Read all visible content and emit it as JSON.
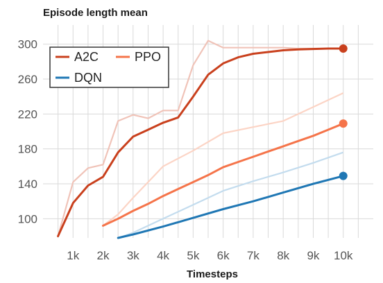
{
  "chart_data": {
    "type": "line",
    "title": "Episode length mean",
    "xlabel": "Timesteps",
    "ylabel": "",
    "xlim": [
      0,
      11000
    ],
    "ylim": [
      78,
      322
    ],
    "x_ticks": [
      1000,
      2000,
      3000,
      4000,
      5000,
      6000,
      7000,
      8000,
      9000,
      10000
    ],
    "x_tick_labels": [
      "1k",
      "2k",
      "3k",
      "4k",
      "5k",
      "6k",
      "7k",
      "8k",
      "9k",
      "10k"
    ],
    "y_ticks": [
      100,
      140,
      180,
      220,
      260,
      300
    ],
    "y_tick_labels": [
      "100",
      "140",
      "180",
      "220",
      "260",
      "300"
    ],
    "grid": true,
    "legend_position": "top-left",
    "series": [
      {
        "name": "A2C",
        "color": "#c9401d",
        "raw_color": "#f0c3b8",
        "x": [
          500,
          1000,
          1500,
          2000,
          2500,
          3000,
          3500,
          4000,
          4500,
          5000,
          5500,
          6000,
          6500,
          7000,
          7500,
          8000,
          8500,
          9000,
          9500,
          10000
        ],
        "values": [
          80,
          118,
          138,
          148,
          176,
          194,
          202,
          210,
          216,
          240,
          265,
          278,
          285,
          289,
          291,
          293,
          294,
          294.5,
          295,
          295
        ],
        "raw_x": [
          500,
          1000,
          1500,
          2000,
          2500,
          3000,
          3500,
          4000,
          4500,
          5000,
          5500,
          6000,
          6500,
          7000,
          7500,
          8000,
          8500,
          9000,
          9500,
          10000
        ],
        "raw_values": [
          80,
          142,
          158,
          162,
          212,
          219,
          215,
          224,
          224,
          276,
          304,
          296,
          296,
          296,
          296,
          296,
          295,
          295,
          295,
          295
        ],
        "end_marker": true
      },
      {
        "name": "PPO",
        "color": "#f5744a",
        "raw_color": "#fcd4c5",
        "x": [
          2000,
          2500,
          3000,
          3500,
          4000,
          4500,
          5000,
          5500,
          6000,
          6500,
          7000,
          7500,
          8000,
          8500,
          9000,
          9500,
          10000
        ],
        "values": [
          92,
          100,
          109,
          117,
          126,
          134,
          142,
          150,
          159,
          165,
          171,
          177,
          183,
          189,
          195,
          202,
          209
        ],
        "raw_x": [
          2000,
          2500,
          3000,
          3500,
          4000,
          5000,
          6000,
          7000,
          8000,
          9000,
          10000
        ],
        "raw_values": [
          92,
          105,
          124,
          142,
          160,
          178,
          198,
          205,
          212,
          228,
          244
        ],
        "end_marker": true
      },
      {
        "name": "DQN",
        "color": "#1f77b4",
        "raw_color": "#c3dcee",
        "x": [
          2500,
          3000,
          4000,
          5000,
          6000,
          7000,
          8000,
          9000,
          10000
        ],
        "values": [
          78,
          82,
          91,
          101,
          111,
          120,
          130,
          140,
          149
        ],
        "raw_x": [
          2500,
          3000,
          4000,
          5000,
          6000,
          7000,
          8000,
          9000,
          10000
        ],
        "raw_values": [
          78,
          84,
          100,
          116,
          132,
          143,
          153,
          164,
          176
        ],
        "end_marker": true
      }
    ]
  }
}
